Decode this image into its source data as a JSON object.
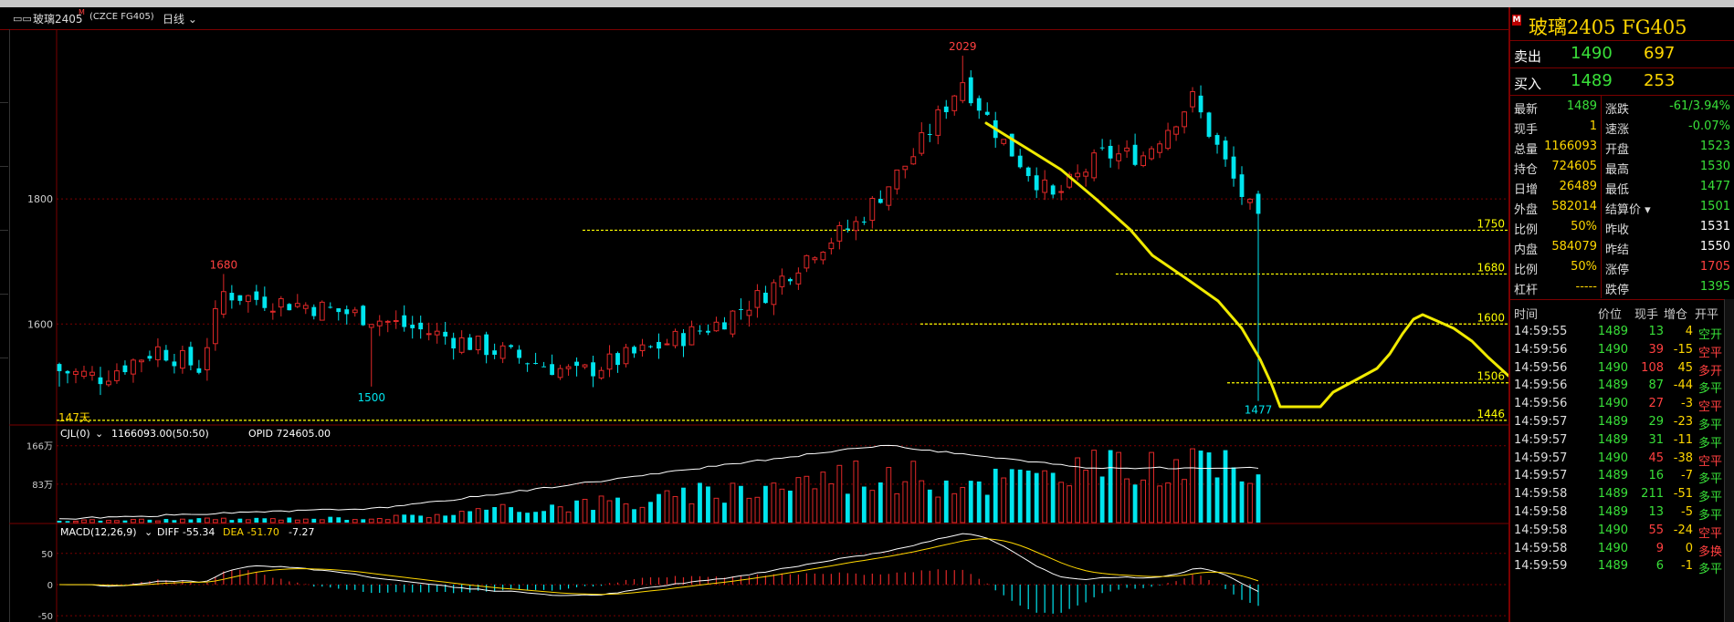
{
  "window": {
    "title": "玻璃2405",
    "title_marker": "M",
    "exchange_code": "(CZCE FG405)",
    "period": "日线",
    "icon": "window-menu-icon"
  },
  "chart_data": [
    {
      "type": "candlestick",
      "name": "main",
      "ylim": [
        1440,
        2070
      ],
      "yticks": [
        1600,
        1800
      ],
      "grid": true,
      "bars": 147,
      "bar_count_label": "147天",
      "high_label": "2029",
      "local_high_label": "1680",
      "low_label_left": "1500",
      "low_label_right": "1477",
      "levels": [
        {
          "value": 1750,
          "label": "1750"
        },
        {
          "value": 1680,
          "label": "1680"
        },
        {
          "value": 1600,
          "label": "1600"
        },
        {
          "value": 1506,
          "label": "1506"
        },
        {
          "value": 1446,
          "label": "1446"
        }
      ],
      "anchors": [
        {
          "i": 0,
          "c": 1525
        },
        {
          "i": 5,
          "c": 1515
        },
        {
          "i": 12,
          "c": 1560
        },
        {
          "i": 17,
          "c": 1530
        },
        {
          "i": 20,
          "c": 1650
        },
        {
          "i": 24,
          "c": 1640
        },
        {
          "i": 30,
          "c": 1630
        },
        {
          "i": 38,
          "c": 1610
        },
        {
          "i": 47,
          "c": 1580
        },
        {
          "i": 55,
          "c": 1550
        },
        {
          "i": 63,
          "c": 1520
        },
        {
          "i": 72,
          "c": 1560
        },
        {
          "i": 80,
          "c": 1600
        },
        {
          "i": 86,
          "c": 1650
        },
        {
          "i": 92,
          "c": 1720
        },
        {
          "i": 97,
          "c": 1760
        },
        {
          "i": 104,
          "c": 1870
        },
        {
          "i": 110,
          "c": 1990
        },
        {
          "i": 115,
          "c": 1890
        },
        {
          "i": 121,
          "c": 1800
        },
        {
          "i": 127,
          "c": 1870
        },
        {
          "i": 132,
          "c": 1870
        },
        {
          "i": 138,
          "c": 1960
        },
        {
          "i": 143,
          "c": 1830
        },
        {
          "i": 146,
          "c": 1760
        }
      ]
    },
    {
      "type": "bar",
      "name": "volume",
      "indicator_label": "CJL(0)",
      "indicator_values": "1166093.00(50:50)",
      "oi_label": "OPID 724605.00",
      "yticks": [
        "166万",
        "83万"
      ],
      "ymax": 1.95
    },
    {
      "type": "line",
      "name": "macd",
      "indicator_label": "MACD(12,26,9)",
      "diff_label": "DIFF -55.34",
      "dea_label": "DEA -51.70",
      "macd_label": "-7.27",
      "yticks": [
        "50",
        "0",
        "-50"
      ],
      "ylim": [
        -60,
        95
      ]
    }
  ],
  "colors": {
    "up": "#e02828",
    "down": "#00e5ee",
    "grid": "#7a0000",
    "level": "#ffff00",
    "trend": "#f0ea00",
    "label_gold": "#ffd700",
    "red_text": "#ff4040",
    "green_text": "#39e039"
  },
  "quote": {
    "name": "玻璃2405 FG405",
    "marker": "M",
    "ask": {
      "label": "卖出",
      "price": "1490",
      "vol": "697"
    },
    "bid": {
      "label": "买入",
      "price": "1489",
      "vol": "253"
    },
    "rows": [
      {
        "l1": "最新",
        "v1": "1489",
        "c1": "green",
        "l2": "涨跌",
        "v2": "-61/3.94%",
        "c2": "green"
      },
      {
        "l1": "现手",
        "v1": "1",
        "c1": "yellow",
        "l2": "速涨",
        "v2": "-0.07%",
        "c2": "green"
      },
      {
        "l1": "总量",
        "v1": "1166093",
        "c1": "yellow",
        "l2": "开盘",
        "v2": "1523",
        "c2": "green"
      },
      {
        "l1": "持仓",
        "v1": "724605",
        "c1": "yellow",
        "l2": "最高",
        "v2": "1530",
        "c2": "green"
      },
      {
        "l1": "日增",
        "v1": "26489",
        "c1": "yellow",
        "l2": "最低",
        "v2": "1477",
        "c2": "green"
      },
      {
        "l1": "外盘",
        "v1": "582014",
        "c1": "yellow",
        "l2": "结算价",
        "v2": "1501",
        "c2": "green",
        "dropdown": true
      },
      {
        "l1": "比例",
        "v1": "50%",
        "c1": "yellow",
        "l2": "昨收",
        "v2": "1531",
        "c2": "white"
      },
      {
        "l1": "内盘",
        "v1": "584079",
        "c1": "yellow",
        "l2": "昨结",
        "v2": "1550",
        "c2": "white"
      },
      {
        "l1": "比例",
        "v1": "50%",
        "c1": "yellow",
        "l2": "涨停",
        "v2": "1705",
        "c2": "red"
      },
      {
        "l1": "杠杆",
        "v1": "-----",
        "c1": "yellow",
        "l2": "跌停",
        "v2": "1395",
        "c2": "green"
      }
    ],
    "ticks_header": {
      "time": "时间",
      "price": "价位",
      "vol": "现手",
      "oi": "增仓",
      "type": "开平"
    },
    "ticks": [
      {
        "time": "14:59:55",
        "price": "1489",
        "vol": "13",
        "oi": "4",
        "type": "空开",
        "pc": "green",
        "vc": "green",
        "tc": "green"
      },
      {
        "time": "14:59:56",
        "price": "1490",
        "vol": "39",
        "oi": "-15",
        "type": "空平",
        "pc": "green",
        "vc": "red",
        "tc": "red"
      },
      {
        "time": "14:59:56",
        "price": "1490",
        "vol": "108",
        "oi": "45",
        "type": "多开",
        "pc": "green",
        "vc": "red",
        "tc": "red"
      },
      {
        "time": "14:59:56",
        "price": "1489",
        "vol": "87",
        "oi": "-44",
        "type": "多平",
        "pc": "green",
        "vc": "green",
        "tc": "green"
      },
      {
        "time": "14:59:56",
        "price": "1490",
        "vol": "27",
        "oi": "-3",
        "type": "空平",
        "pc": "green",
        "vc": "red",
        "tc": "red"
      },
      {
        "time": "14:59:57",
        "price": "1489",
        "vol": "29",
        "oi": "-23",
        "type": "多平",
        "pc": "green",
        "vc": "green",
        "tc": "green"
      },
      {
        "time": "14:59:57",
        "price": "1489",
        "vol": "31",
        "oi": "-11",
        "type": "多平",
        "pc": "green",
        "vc": "green",
        "tc": "green"
      },
      {
        "time": "14:59:57",
        "price": "1490",
        "vol": "45",
        "oi": "-38",
        "type": "空平",
        "pc": "green",
        "vc": "red",
        "tc": "red"
      },
      {
        "time": "14:59:57",
        "price": "1489",
        "vol": "16",
        "oi": "-7",
        "type": "多平",
        "pc": "green",
        "vc": "green",
        "tc": "green"
      },
      {
        "time": "14:59:58",
        "price": "1489",
        "vol": "211",
        "oi": "-51",
        "type": "多平",
        "pc": "green",
        "vc": "green",
        "tc": "green"
      },
      {
        "time": "14:59:58",
        "price": "1489",
        "vol": "13",
        "oi": "-5",
        "type": "多平",
        "pc": "green",
        "vc": "green",
        "tc": "green"
      },
      {
        "time": "14:59:58",
        "price": "1490",
        "vol": "55",
        "oi": "-24",
        "type": "空平",
        "pc": "green",
        "vc": "red",
        "tc": "red"
      },
      {
        "time": "14:59:58",
        "price": "1490",
        "vol": "9",
        "oi": "0",
        "type": "多换",
        "pc": "green",
        "vc": "red",
        "tc": "red"
      },
      {
        "time": "14:59:59",
        "price": "1489",
        "vol": "6",
        "oi": "-1",
        "type": "多平",
        "pc": "green",
        "vc": "green",
        "tc": "green"
      }
    ]
  }
}
